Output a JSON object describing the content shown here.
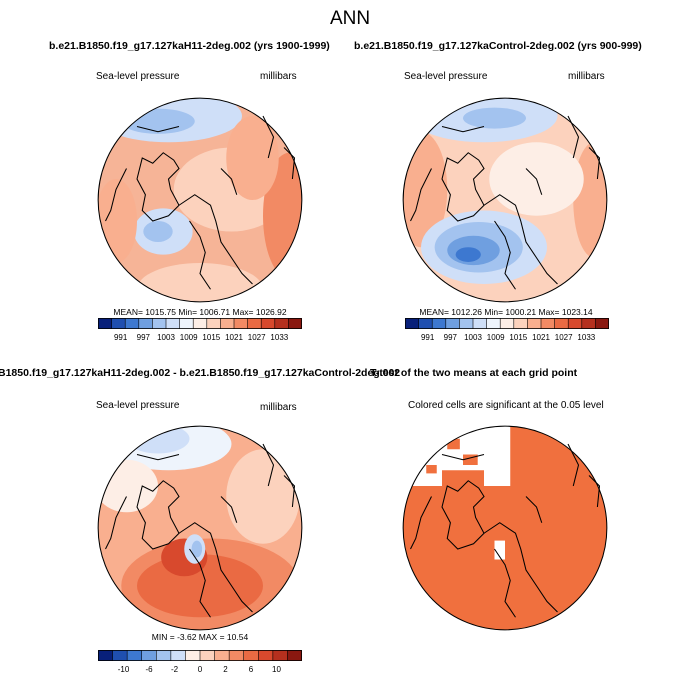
{
  "page": {
    "season": "ANN",
    "case1_title": "b.e21.B1850.f19_g17.127kaH11-2deg.002 (yrs 1900-1999)",
    "case2_title": "b.e21.B1850.f19_g17.127kaControl-2deg.002 (yrs 900-999)",
    "diff_title": "B1850.f19_g17.127kaH11-2deg.002 - b.e21.B1850.f19_g17.127kaControl-2deg.002",
    "ttest_title": "T-test of the two means at each grid point"
  },
  "chart_data": [
    {
      "type": "heatmap",
      "panel": "case1",
      "title": "Sea-level pressure",
      "units": "millibars",
      "stats": "MEAN= 1015.75  Min= 1006.71  Max= 1026.92",
      "mean": 1015.75,
      "min": 1006.71,
      "max": 1026.92,
      "colorbar_ticks": [
        "991",
        "997",
        "1003",
        "1009",
        "1015",
        "1021",
        "1027",
        "1033"
      ],
      "colorbar_colors": [
        "#08207a",
        "#1f4fb0",
        "#3d78d0",
        "#6f9fe0",
        "#a3c3ef",
        "#cfdff8",
        "#eef4fc",
        "#fdeee6",
        "#fcd2bd",
        "#f9af8f",
        "#f28a64",
        "#ea6a43",
        "#d8492d",
        "#b5301e",
        "#8a1810"
      ]
    },
    {
      "type": "heatmap",
      "panel": "case2",
      "title": "Sea-level pressure",
      "units": "millibars",
      "stats": "MEAN= 1012.26  Min= 1000.21  Max= 1023.14",
      "mean": 1012.26,
      "min": 1000.21,
      "max": 1023.14,
      "colorbar_ticks": [
        "991",
        "997",
        "1003",
        "1009",
        "1015",
        "1021",
        "1027",
        "1033"
      ],
      "colorbar_colors": [
        "#08207a",
        "#1f4fb0",
        "#3d78d0",
        "#6f9fe0",
        "#a3c3ef",
        "#cfdff8",
        "#eef4fc",
        "#fdeee6",
        "#fcd2bd",
        "#f9af8f",
        "#f28a64",
        "#ea6a43",
        "#d8492d",
        "#b5301e",
        "#8a1810"
      ]
    },
    {
      "type": "heatmap",
      "panel": "difference",
      "title": "Sea-level pressure",
      "units": "millibars",
      "stats": "MIN =  -3.62 MAX =  10.54",
      "min": -3.62,
      "max": 10.54,
      "colorbar_ticks": [
        "-10",
        "-6",
        "-2",
        "0",
        "2",
        "6",
        "10"
      ],
      "colorbar_colors": [
        "#08207a",
        "#1f4fb0",
        "#3d78d0",
        "#6f9fe0",
        "#a3c3ef",
        "#cfdff8",
        "#fdeee6",
        "#fcd2bd",
        "#f9af8f",
        "#f28a64",
        "#ea6a43",
        "#d8492d",
        "#b5301e",
        "#8a1810"
      ]
    },
    {
      "type": "heatmap",
      "panel": "ttest",
      "title": "Colored cells are significant at the 0.05 level"
    }
  ]
}
